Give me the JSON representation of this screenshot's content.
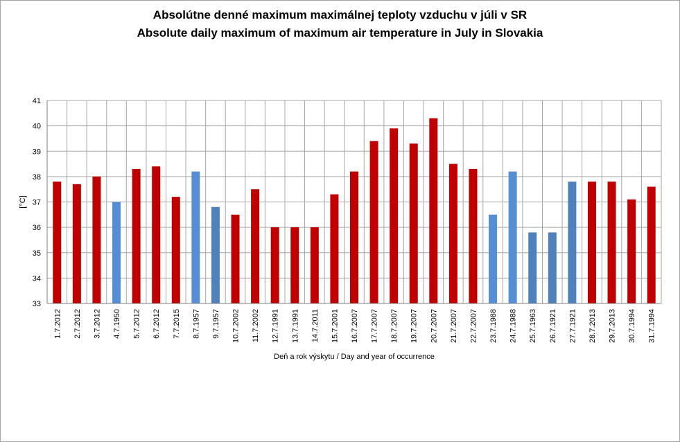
{
  "chart_data": {
    "type": "bar",
    "title": "Absolútne denné maximum maximálnej teploty vzduchu v júli v SR",
    "subtitle": "Absolute daily maximum of maximum air temperature in July in Slovakia",
    "xlabel": "Deň a rok výskytu  / Day and year of occurrence",
    "ylabel": "[°C]",
    "ylim": [
      33,
      41
    ],
    "yticks": [
      "33",
      "34",
      "35",
      "36",
      "37",
      "38",
      "39",
      "40",
      "41"
    ],
    "grid": true,
    "legend": "none",
    "categories": [
      "1.7.2012",
      "2.7.2012",
      "3.7.2012",
      "4.7.1950",
      "5.7.2012",
      "6.7.2012",
      "7.7.2015",
      "8.7.1957",
      "9.7.1957",
      "10.7.2002",
      "11.7.2002",
      "12.7.1991",
      "13.7.1991",
      "14.7.2011",
      "15.7.2001",
      "16.7.2007",
      "17.7.2007",
      "18.7.2007",
      "19.7.2007",
      "20.7.2007",
      "21.7.2007",
      "22.7.2007",
      "23.7.1988",
      "24.7.1988",
      "25.7.1963",
      "26.7.1921",
      "27.7.1921",
      "28.7.2013",
      "29.7.2013",
      "30.7.1994",
      "31.7.1994"
    ],
    "values": [
      37.8,
      37.7,
      38.0,
      37.0,
      38.3,
      38.4,
      37.2,
      38.2,
      36.8,
      36.5,
      37.5,
      36.0,
      36.0,
      36.0,
      37.3,
      38.2,
      39.4,
      39.9,
      39.3,
      40.3,
      38.5,
      38.3,
      36.5,
      38.2,
      35.8,
      35.8,
      37.8,
      37.8,
      37.8,
      37.1,
      37.6
    ],
    "colors": [
      "#c00000",
      "#c00000",
      "#c00000",
      "#558ed5",
      "#c00000",
      "#c00000",
      "#c00000",
      "#558ed5",
      "#4f81bd",
      "#c00000",
      "#c00000",
      "#c00000",
      "#c00000",
      "#c00000",
      "#c00000",
      "#c00000",
      "#c00000",
      "#c00000",
      "#c00000",
      "#c00000",
      "#c00000",
      "#c00000",
      "#558ed5",
      "#558ed5",
      "#4f81bd",
      "#4f81bd",
      "#4f81bd",
      "#c00000",
      "#c00000",
      "#c00000",
      "#c00000"
    ]
  }
}
